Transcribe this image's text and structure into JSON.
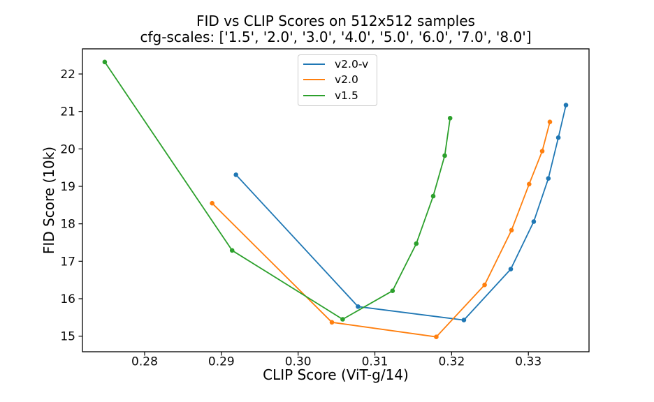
{
  "titles": {
    "line1": "FID vs CLIP Scores on 512x512 samples",
    "line2": "cfg-scales: ['1.5', '2.0', '3.0', '4.0', '5.0', '6.0', '7.0', '8.0']"
  },
  "chart_data": {
    "type": "line",
    "title": "FID vs CLIP Scores on 512x512 samples",
    "subtitle": "cfg-scales: ['1.5', '2.0', '3.0', '4.0', '5.0', '6.0', '7.0', '8.0']",
    "xlabel": "CLIP Score (ViT-g/14)",
    "ylabel": "FID Score (10k)",
    "grid": false,
    "marker": "circle",
    "legend_position": "upper center inside",
    "xlim": [
      0.2719,
      0.3379
    ],
    "ylim": [
      14.584,
      22.671
    ],
    "x_ticks": [
      0.28,
      0.29,
      0.3,
      0.31,
      0.32,
      0.33
    ],
    "x_tick_labels": [
      "0.28",
      "0.29",
      "0.30",
      "0.31",
      "0.32",
      "0.33"
    ],
    "y_ticks": [
      15,
      16,
      17,
      18,
      19,
      20,
      21,
      22
    ],
    "y_tick_labels": [
      "15",
      "16",
      "17",
      "18",
      "19",
      "20",
      "21",
      "22"
    ],
    "cfg_scales": [
      "1.5",
      "2.0",
      "3.0",
      "4.0",
      "5.0",
      "6.0",
      "7.0",
      "8.0"
    ],
    "series": [
      {
        "name": "v2.0-v",
        "color": "#1f77b4",
        "x": [
          0.2919,
          0.3078,
          0.3216,
          0.3277,
          0.3307,
          0.3326,
          0.3339,
          0.3349
        ],
        "y": [
          19.31,
          15.79,
          15.43,
          16.79,
          18.06,
          19.21,
          20.3,
          21.17
        ]
      },
      {
        "name": "v2.0",
        "color": "#ff7f0e",
        "x": [
          0.2888,
          0.3044,
          0.318,
          0.3243,
          0.3278,
          0.3301,
          0.3318,
          0.3328
        ],
        "y": [
          18.55,
          15.37,
          14.98,
          16.37,
          17.83,
          19.06,
          19.94,
          20.72
        ]
      },
      {
        "name": "v1.5",
        "color": "#2ca02c",
        "x": [
          0.2748,
          0.2914,
          0.3058,
          0.3123,
          0.3154,
          0.3176,
          0.3191,
          0.3198
        ],
        "y": [
          22.32,
          17.29,
          15.45,
          16.21,
          17.47,
          18.74,
          19.82,
          20.82
        ]
      }
    ]
  }
}
